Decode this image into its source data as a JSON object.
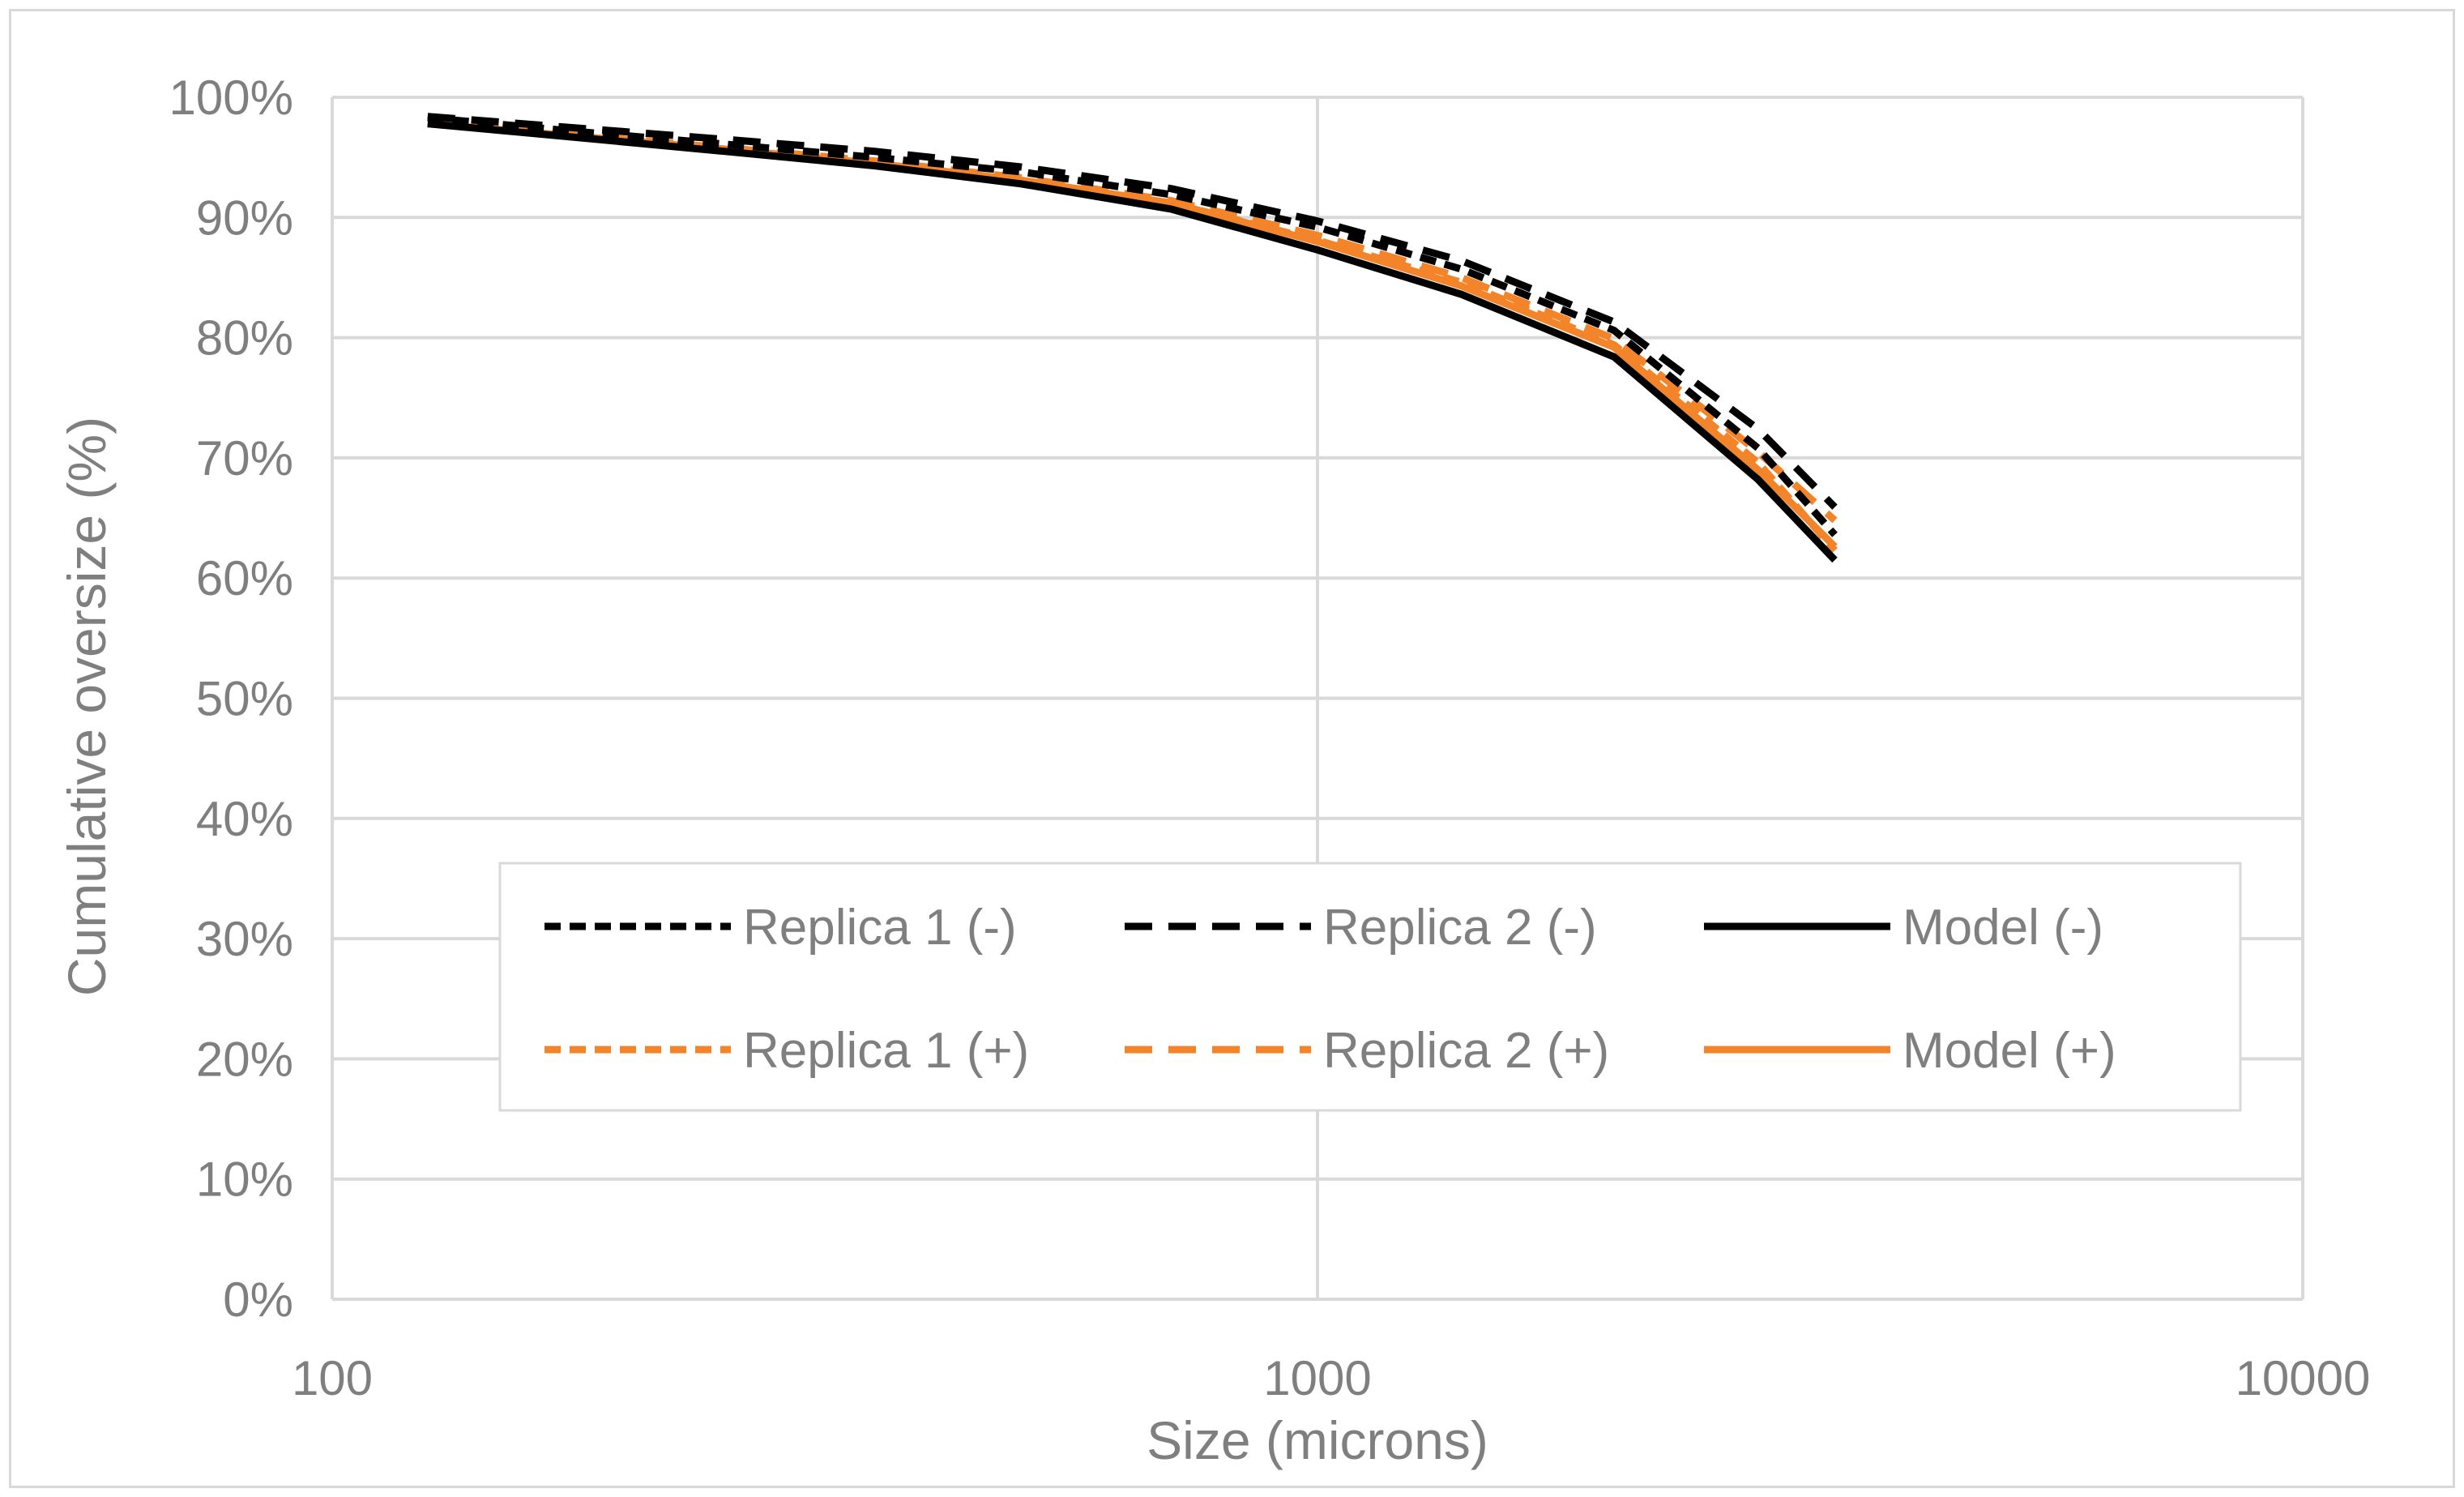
{
  "chart_data": {
    "type": "line",
    "xlabel": "Size (microns)",
    "ylabel": "Cumulative oversize (%)",
    "xscale": "log",
    "xlim": [
      100,
      10000
    ],
    "ylim": [
      0,
      100
    ],
    "x_ticks": [
      100,
      1000,
      10000
    ],
    "x_tick_labels": [
      "100",
      "1000",
      "10000"
    ],
    "y_ticks": [
      0,
      10,
      20,
      30,
      40,
      50,
      60,
      70,
      80,
      90,
      100
    ],
    "y_tick_labels": [
      "0%",
      "10%",
      "20%",
      "30%",
      "40%",
      "50%",
      "60%",
      "70%",
      "80%",
      "90%",
      "100%"
    ],
    "grid": true,
    "legend_position": "inside-bottom-center",
    "colors": {
      "black": "#000000",
      "orange": "#f4842a",
      "grid": "#d9d9d9",
      "text": "#7f7f7f"
    },
    "series": [
      {
        "name": "Replica 1 (-)",
        "color": "#000000",
        "dash": "short",
        "x": [
          125,
          180,
          250,
          355,
          500,
          710,
          1000,
          1400,
          2000,
          2800,
          3350
        ],
        "y": [
          98.3,
          97.1,
          96.1,
          95.0,
          93.8,
          91.9,
          89.2,
          85.7,
          80.6,
          70.8,
          63.6
        ]
      },
      {
        "name": "Replica 2 (-)",
        "color": "#000000",
        "dash": "long",
        "x": [
          125,
          180,
          250,
          355,
          500,
          710,
          1000,
          1400,
          2000,
          2800,
          3350
        ],
        "y": [
          98.4,
          97.4,
          96.5,
          95.5,
          94.2,
          92.4,
          89.7,
          86.4,
          81.3,
          72.4,
          65.9
        ]
      },
      {
        "name": "Model (-)",
        "color": "#000000",
        "dash": "solid",
        "x": [
          125,
          180,
          250,
          355,
          500,
          710,
          1000,
          1400,
          2000,
          2800,
          3350
        ],
        "y": [
          97.8,
          96.6,
          95.5,
          94.3,
          92.8,
          90.7,
          87.3,
          83.6,
          78.4,
          68.2,
          61.5
        ]
      },
      {
        "name": "Replica 1 (+)",
        "color": "#f4842a",
        "dash": "short",
        "x": [
          125,
          180,
          250,
          355,
          500,
          710,
          1000,
          1400,
          2000,
          2800,
          3350
        ],
        "y": [
          97.8,
          96.7,
          95.7,
          94.5,
          93.1,
          91.2,
          88.1,
          84.6,
          79.4,
          69.6,
          62.3
        ]
      },
      {
        "name": "Replica 2 (+)",
        "color": "#f4842a",
        "dash": "long",
        "x": [
          125,
          180,
          250,
          355,
          500,
          710,
          1000,
          1400,
          2000,
          2800,
          3350
        ],
        "y": [
          97.8,
          96.8,
          95.8,
          94.7,
          93.3,
          91.4,
          88.5,
          85.0,
          79.9,
          70.5,
          64.8
        ]
      },
      {
        "name": "Model (+)",
        "color": "#f4842a",
        "dash": "solid",
        "x": [
          125,
          180,
          250,
          355,
          500,
          710,
          1000,
          1400,
          2000,
          2800,
          3350
        ],
        "y": [
          97.8,
          96.7,
          95.7,
          94.5,
          93.1,
          91.2,
          88.0,
          84.3,
          79.2,
          69.0,
          62.6
        ]
      }
    ]
  }
}
